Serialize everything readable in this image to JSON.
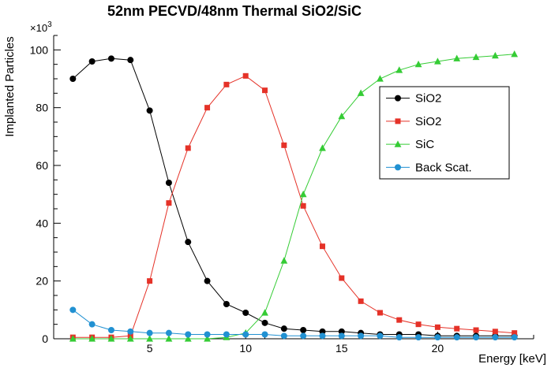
{
  "chart_data": {
    "type": "line",
    "title": "52nm PECVD/48nm Thermal SiO2/SiC",
    "xlabel": "Energy [keV]",
    "ylabel": "Implanted Particles",
    "y_multiplier_base": "×10",
    "y_multiplier_exp": "3",
    "xlim": [
      0,
      25
    ],
    "ylim": [
      0,
      105
    ],
    "xticks": [
      5,
      10,
      15,
      20
    ],
    "yticks": [
      0,
      20,
      40,
      60,
      80,
      100
    ],
    "x_minor_step": 1,
    "y_minor_step": 5,
    "grid": false,
    "legend_position": "right",
    "x": [
      1,
      2,
      3,
      4,
      5,
      6,
      7,
      8,
      9,
      10,
      11,
      12,
      13,
      14,
      15,
      16,
      17,
      18,
      19,
      20,
      21,
      22,
      23,
      24
    ],
    "series": [
      {
        "name": "SiO2",
        "color": "#000000",
        "marker": "circle",
        "values": [
          90,
          96,
          97,
          96.5,
          79,
          54,
          33.5,
          20,
          12,
          9,
          5.5,
          3.5,
          3,
          2.5,
          2.5,
          2,
          1.5,
          1.5,
          1.5,
          1,
          1,
          1,
          1,
          1
        ]
      },
      {
        "name": "SiO2",
        "color": "#e53228",
        "marker": "square",
        "values": [
          0.5,
          0.5,
          0.5,
          1,
          20,
          47,
          66,
          80,
          88,
          91,
          86,
          67,
          46,
          32,
          21,
          13,
          9,
          6.5,
          5,
          4,
          3.5,
          3,
          2.5,
          2
        ]
      },
      {
        "name": "SiC",
        "color": "#35cc35",
        "marker": "triangle",
        "values": [
          0,
          0,
          0,
          0,
          0,
          0,
          0,
          0,
          0.5,
          2,
          9,
          27,
          50,
          66,
          77,
          85,
          90,
          93,
          95,
          96,
          97,
          97.5,
          98,
          98.5
        ]
      },
      {
        "name": "Back Scat.",
        "color": "#2191d2",
        "marker": "circle",
        "values": [
          10,
          5,
          3,
          2.5,
          2,
          2,
          1.5,
          1.5,
          1.5,
          1.5,
          1.5,
          1,
          1,
          1,
          1,
          1,
          1,
          0.5,
          0.5,
          0.5,
          0.5,
          0.5,
          0.5,
          0.5
        ]
      }
    ],
    "legend_entries": [
      "SiO2",
      "SiO2",
      "SiC",
      "Back Scat."
    ]
  }
}
